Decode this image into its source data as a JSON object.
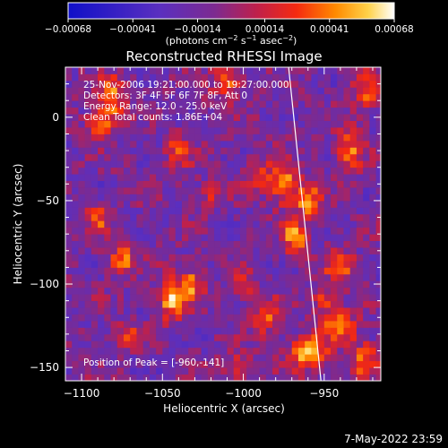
{
  "chart_data": {
    "type": "heatmap",
    "title": "Reconstructed RHESSI Image",
    "xlabel": "Heliocentric X (arcsec)",
    "ylabel": "Heliocentric Y (arcsec)",
    "xlim": [
      -1110,
      -915
    ],
    "ylim": [
      -158,
      30
    ],
    "x_ticks": [
      -1100,
      -1050,
      -1000,
      -950
    ],
    "y_ticks": [
      0,
      -50,
      -100,
      -150
    ],
    "x_tick_labels": [
      "−1100",
      "−1050",
      "−1000",
      "−950"
    ],
    "y_tick_labels": [
      "0",
      "−50",
      "−100",
      "−150"
    ],
    "colorbar": {
      "min": -0.00068,
      "max": 0.00068,
      "ticks": [
        -0.00068,
        -0.00041,
        -0.00014,
        0.00014,
        0.00041,
        0.00068
      ],
      "tick_labels": [
        "−0.00068",
        "−0.00041",
        "−0.00014",
        "0.00014",
        "0.00041",
        "0.00068"
      ],
      "units_prefix": "(photons cm",
      "units_sup1": "−2",
      "units_mid1": " s",
      "units_sup2": "−1",
      "units_mid2": " asec",
      "units_sup3": "−2",
      "units_suffix": ")"
    },
    "annotations": {
      "time": "25-Nov-2006 19:21:00.000 to 19:27:00.000",
      "detectors": "Detectors: 3F 4F 5F 6F 7F 8F, Att 0",
      "energy": "Energy Range: 12.0 - 25.0 keV",
      "clean": "Clean     Total counts: 1.86E+04",
      "peak": "Position of Peak = [-960,-141]"
    },
    "peak": {
      "x": -960,
      "y": -141
    },
    "limb_line": [
      {
        "x": -972,
        "y": 30
      },
      {
        "x": -952,
        "y": -158
      }
    ],
    "hot_spots": [
      {
        "x": -1082,
        "y": 10,
        "amp": 0.00055,
        "sx": 6,
        "sy": 10
      },
      {
        "x": -1090,
        "y": -5,
        "amp": 0.00045,
        "sx": 5,
        "sy": 6
      },
      {
        "x": -1040,
        "y": -20,
        "amp": 0.0004,
        "sx": 5,
        "sy": 8
      },
      {
        "x": -1010,
        "y": 20,
        "amp": 0.00045,
        "sx": 6,
        "sy": 8
      },
      {
        "x": -1020,
        "y": -45,
        "amp": 0.00035,
        "sx": 5,
        "sy": 5
      },
      {
        "x": -990,
        "y": -35,
        "amp": 0.0004,
        "sx": 5,
        "sy": 6
      },
      {
        "x": -975,
        "y": -40,
        "amp": 0.0006,
        "sx": 6,
        "sy": 8
      },
      {
        "x": -960,
        "y": -50,
        "amp": 0.00055,
        "sx": 5,
        "sy": 7
      },
      {
        "x": -968,
        "y": -72,
        "amp": 0.0006,
        "sx": 5,
        "sy": 7
      },
      {
        "x": -935,
        "y": -20,
        "amp": 0.0005,
        "sx": 6,
        "sy": 9
      },
      {
        "x": -925,
        "y": 15,
        "amp": 0.00045,
        "sx": 5,
        "sy": 8
      },
      {
        "x": -940,
        "y": -90,
        "amp": 0.0005,
        "sx": 6,
        "sy": 7
      },
      {
        "x": -1075,
        "y": -85,
        "amp": 0.0005,
        "sx": 6,
        "sy": 6
      },
      {
        "x": -1090,
        "y": -60,
        "amp": 0.0004,
        "sx": 5,
        "sy": 6
      },
      {
        "x": -1045,
        "y": -108,
        "amp": 0.0006,
        "sx": 6,
        "sy": 9
      },
      {
        "x": -1032,
        "y": -100,
        "amp": 0.0005,
        "sx": 5,
        "sy": 7
      },
      {
        "x": -1072,
        "y": -130,
        "amp": 0.0004,
        "sx": 5,
        "sy": 5
      },
      {
        "x": -985,
        "y": -120,
        "amp": 0.00045,
        "sx": 6,
        "sy": 7
      },
      {
        "x": -1000,
        "y": -100,
        "amp": 0.00035,
        "sx": 5,
        "sy": 5
      },
      {
        "x": -960,
        "y": -141,
        "amp": 0.00068,
        "sx": 8,
        "sy": 7
      },
      {
        "x": -940,
        "y": -125,
        "amp": 0.00055,
        "sx": 7,
        "sy": 7
      },
      {
        "x": -925,
        "y": -145,
        "amp": 0.0005,
        "sx": 6,
        "sy": 7
      },
      {
        "x": -950,
        "y": -110,
        "amp": 0.0004,
        "sx": 5,
        "sy": 5
      },
      {
        "x": -1005,
        "y": -150,
        "amp": 0.0004,
        "sx": 6,
        "sy": 5
      }
    ]
  },
  "footer_date": "7-May-2022 23:59"
}
